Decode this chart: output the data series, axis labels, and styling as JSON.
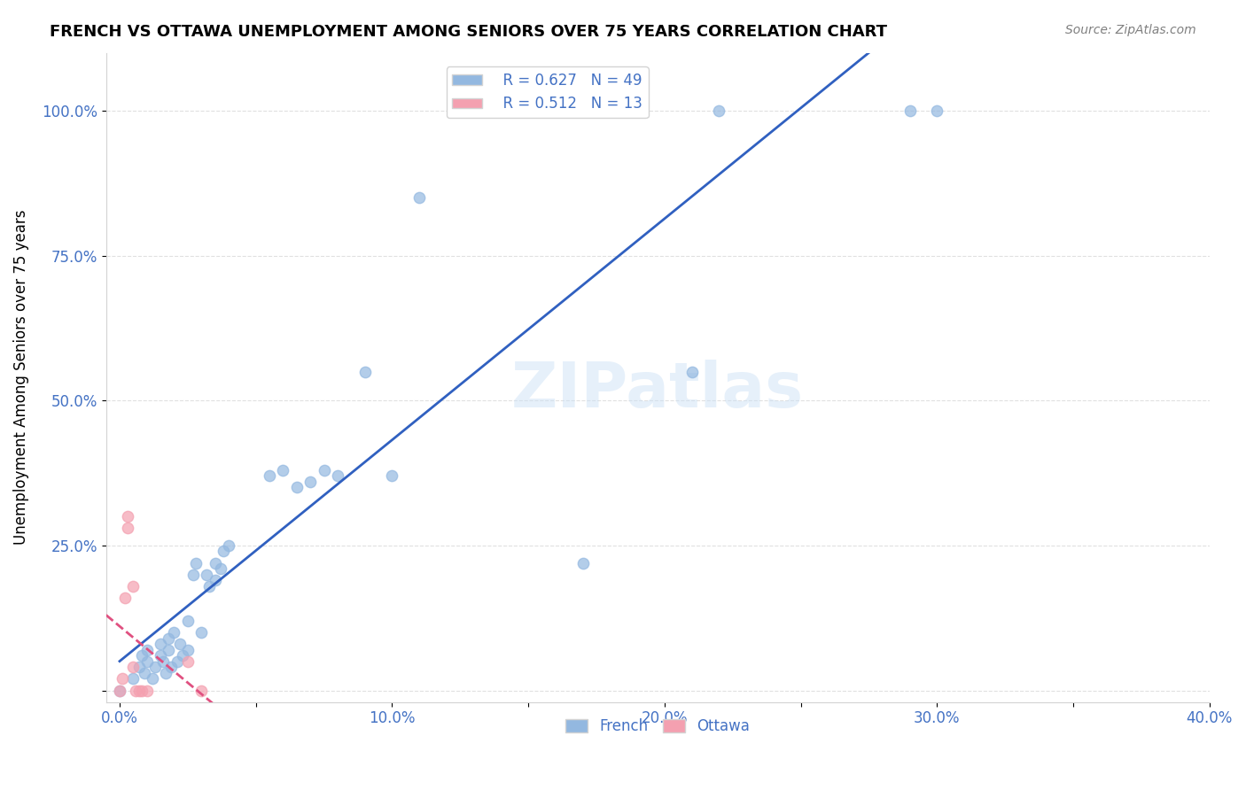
{
  "title": "FRENCH VS OTTAWA UNEMPLOYMENT AMONG SENIORS OVER 75 YEARS CORRELATION CHART",
  "source": "Source: ZipAtlas.com",
  "ylabel": "Unemployment Among Seniors over 75 years",
  "xlim": [
    -0.005,
    0.4
  ],
  "ylim": [
    -0.02,
    1.1
  ],
  "xticks": [
    0.0,
    0.05,
    0.1,
    0.15,
    0.2,
    0.25,
    0.3,
    0.35,
    0.4
  ],
  "xticklabels": [
    "0.0%",
    "",
    "10.0%",
    "",
    "20.0%",
    "",
    "30.0%",
    "",
    "40.0%"
  ],
  "yticks": [
    0.0,
    0.25,
    0.5,
    0.75,
    1.0
  ],
  "yticklabels": [
    "",
    "25.0%",
    "50.0%",
    "75.0%",
    "100.0%"
  ],
  "french_R": 0.627,
  "french_N": 49,
  "ottawa_R": 0.512,
  "ottawa_N": 13,
  "french_color": "#93b8e0",
  "ottawa_color": "#f4a0b0",
  "french_line_color": "#3060c0",
  "ottawa_line_color": "#e05080",
  "watermark": "ZIPatlas",
  "french_x": [
    0.0,
    0.005,
    0.007,
    0.008,
    0.009,
    0.01,
    0.01,
    0.012,
    0.013,
    0.015,
    0.015,
    0.016,
    0.017,
    0.018,
    0.018,
    0.019,
    0.02,
    0.021,
    0.022,
    0.023,
    0.025,
    0.025,
    0.027,
    0.028,
    0.03,
    0.032,
    0.033,
    0.035,
    0.035,
    0.037,
    0.038,
    0.04,
    0.055,
    0.06,
    0.065,
    0.07,
    0.075,
    0.08,
    0.09,
    0.1,
    0.11,
    0.13,
    0.15,
    0.17,
    0.18,
    0.21,
    0.22,
    0.29,
    0.3
  ],
  "french_y": [
    0.0,
    0.02,
    0.04,
    0.06,
    0.03,
    0.05,
    0.07,
    0.02,
    0.04,
    0.06,
    0.08,
    0.05,
    0.03,
    0.07,
    0.09,
    0.04,
    0.1,
    0.05,
    0.08,
    0.06,
    0.12,
    0.07,
    0.2,
    0.22,
    0.1,
    0.2,
    0.18,
    0.22,
    0.19,
    0.21,
    0.24,
    0.25,
    0.37,
    0.38,
    0.35,
    0.36,
    0.38,
    0.37,
    0.55,
    0.37,
    0.85,
    1.0,
    1.0,
    0.22,
    1.0,
    0.55,
    1.0,
    1.0,
    1.0
  ],
  "ottawa_x": [
    0.0,
    0.001,
    0.002,
    0.003,
    0.003,
    0.005,
    0.005,
    0.006,
    0.007,
    0.008,
    0.01,
    0.025,
    0.03
  ],
  "ottawa_y": [
    0.0,
    0.02,
    0.16,
    0.28,
    0.3,
    0.18,
    0.04,
    0.0,
    0.0,
    0.0,
    0.0,
    0.05,
    0.0
  ],
  "marker_size": 80
}
